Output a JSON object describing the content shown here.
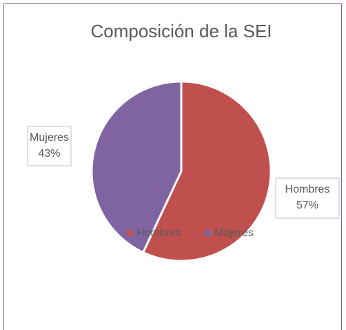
{
  "chart_data": {
    "type": "pie",
    "title": "Composición de la SEI",
    "categories": [
      "Hombres",
      "Mujeres"
    ],
    "values": [
      57,
      43
    ],
    "value_labels": [
      "57%",
      "43%"
    ],
    "colors": [
      "#c0504d",
      "#8064a2"
    ],
    "legend": "bottom"
  }
}
